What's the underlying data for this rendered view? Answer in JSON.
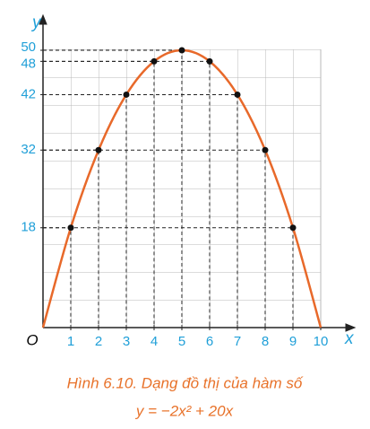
{
  "chart_data": {
    "type": "line",
    "x": [
      0,
      1,
      2,
      3,
      4,
      5,
      6,
      7,
      8,
      9,
      10
    ],
    "series": [
      {
        "color": "#e8692a",
        "values": [
          0,
          18,
          32,
          42,
          48,
          50,
          48,
          42,
          32,
          18,
          0
        ]
      }
    ],
    "xlim": [
      0,
      10
    ],
    "ylim": [
      0,
      50
    ],
    "xticks": [
      1,
      2,
      3,
      4,
      5,
      6,
      7,
      8,
      9,
      10
    ],
    "yticks": [
      18,
      32,
      42,
      48,
      50
    ],
    "origin_label": "O",
    "x_label": "x",
    "y_label": "y",
    "grid": true,
    "caption": "Hình 6.10. Dạng đồ thị của hàm số",
    "formula": "y = −2x² + 20x"
  }
}
